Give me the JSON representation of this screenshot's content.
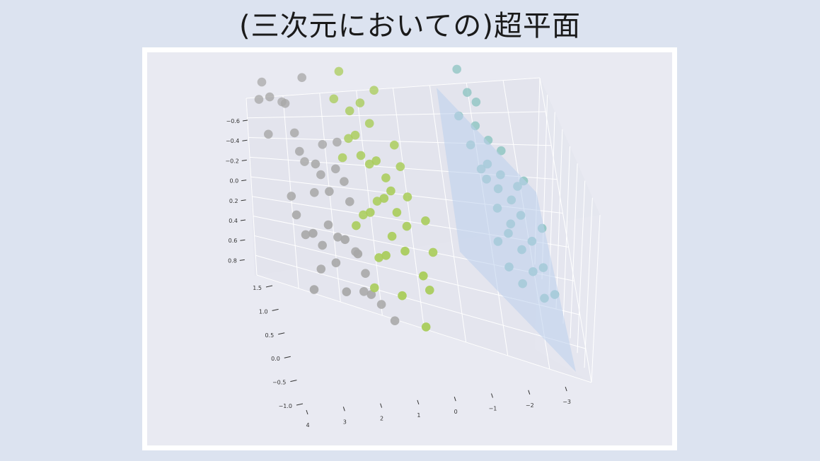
{
  "page": {
    "title": "(三次元においての)超平面"
  },
  "chart_data": {
    "type": "scatter",
    "projection": "3d",
    "title": "",
    "xlabel": "",
    "ylabel": "",
    "zlabel": "",
    "x_ticks": [
      "4",
      "3",
      "2",
      "1",
      "0",
      "−1",
      "−2",
      "−3"
    ],
    "y_ticks": [
      "1.5",
      "1.0",
      "0.5",
      "0.0",
      "−0.5",
      "−1.0"
    ],
    "z_ticks": [
      "−0.6",
      "−0.4",
      "−0.2",
      "0.0",
      "0.2",
      "0.4",
      "0.6",
      "0.8"
    ],
    "xlim": [
      4.5,
      -3.5
    ],
    "ylim": [
      -1.2,
      1.6
    ],
    "grid": true,
    "hyperplane": {
      "present": true,
      "color": "#bcd0ec"
    },
    "series": [
      {
        "color": "#a8a8a8",
        "points": [
          [
            4.1,
            1.4,
            -0.1
          ],
          [
            3.9,
            1.3,
            0.1
          ],
          [
            4.2,
            1.2,
            0.0
          ],
          [
            3.6,
            1.1,
            -0.1
          ],
          [
            3.5,
            1.2,
            0.1
          ],
          [
            3.0,
            1.5,
            0.0
          ],
          [
            4.0,
            0.8,
            0.2
          ],
          [
            3.3,
            0.9,
            0.3
          ],
          [
            3.2,
            0.7,
            0.4
          ],
          [
            3.1,
            0.5,
            0.3
          ],
          [
            2.8,
            0.6,
            0.5
          ],
          [
            2.7,
            0.4,
            0.4
          ],
          [
            2.9,
            0.2,
            0.5
          ],
          [
            2.5,
            0.3,
            0.6
          ],
          [
            2.3,
            0.5,
            0.4
          ],
          [
            2.1,
            0.4,
            0.5
          ],
          [
            2.0,
            0.2,
            0.6
          ],
          [
            3.5,
            0.1,
            0.5
          ],
          [
            3.4,
            -0.1,
            0.6
          ],
          [
            3.2,
            -0.3,
            0.7
          ],
          [
            3.0,
            -0.2,
            0.8
          ],
          [
            2.8,
            -0.4,
            0.7
          ],
          [
            2.6,
            -0.1,
            0.7
          ],
          [
            2.4,
            -0.3,
            0.6
          ],
          [
            2.2,
            -0.2,
            0.8
          ],
          [
            2.9,
            -0.8,
            0.6
          ],
          [
            2.5,
            -0.6,
            0.7
          ],
          [
            2.0,
            -0.5,
            0.5
          ],
          [
            1.8,
            -0.7,
            0.6
          ],
          [
            1.7,
            -0.9,
            0.7
          ],
          [
            1.9,
            -1.0,
            0.5
          ],
          [
            1.5,
            -1.1,
            0.5
          ],
          [
            2.3,
            -0.9,
            0.8
          ],
          [
            3.1,
            -1.0,
            0.8
          ],
          [
            1.2,
            -1.2,
            0.6
          ],
          [
            1.9,
            -0.3,
            0.9
          ],
          [
            2.2,
            0.8,
            0.3
          ],
          [
            2.6,
            0.7,
            0.2
          ]
        ]
      },
      {
        "color": "#a9cc5a",
        "points": [
          [
            2.0,
            1.5,
            -0.1
          ],
          [
            2.2,
            1.2,
            0.0
          ],
          [
            1.8,
            1.1,
            0.1
          ],
          [
            1.5,
            1.2,
            0.1
          ],
          [
            1.3,
            1.0,
            0.2
          ],
          [
            1.7,
            0.9,
            0.3
          ],
          [
            1.9,
            0.8,
            0.2
          ],
          [
            2.1,
            0.6,
            0.3
          ],
          [
            1.6,
            0.7,
            0.4
          ],
          [
            1.4,
            0.6,
            0.4
          ],
          [
            1.2,
            0.7,
            0.5
          ],
          [
            1.0,
            0.5,
            0.5
          ],
          [
            0.9,
            0.4,
            0.6
          ],
          [
            1.1,
            0.3,
            0.6
          ],
          [
            0.8,
            0.2,
            0.7
          ],
          [
            1.3,
            0.2,
            0.5
          ],
          [
            1.5,
            0.1,
            0.6
          ],
          [
            1.7,
            0.0,
            0.5
          ],
          [
            1.9,
            -0.1,
            0.6
          ],
          [
            1.0,
            -0.1,
            0.7
          ],
          [
            0.7,
            -0.2,
            0.8
          ],
          [
            1.2,
            -0.3,
            0.8
          ],
          [
            1.4,
            -0.4,
            0.7
          ],
          [
            0.6,
            0.0,
            0.6
          ],
          [
            0.5,
            0.3,
            0.5
          ],
          [
            0.3,
            -0.4,
            0.9
          ],
          [
            0.2,
            -0.6,
            0.8
          ],
          [
            0.9,
            -0.7,
            0.9
          ],
          [
            1.6,
            -0.8,
            0.7
          ],
          [
            0.4,
            -1.0,
            0.9
          ],
          [
            1.1,
            1.3,
            0.0
          ],
          [
            0.7,
            0.8,
            0.3
          ],
          [
            0.6,
            0.6,
            0.4
          ],
          [
            0.1,
            0.1,
            0.6
          ],
          [
            0.0,
            -0.2,
            0.7
          ]
        ]
      },
      {
        "color": "#8ec5c2",
        "points": [
          [
            -1.2,
            1.5,
            0.0
          ],
          [
            -1.4,
            1.3,
            0.1
          ],
          [
            -1.6,
            1.2,
            0.1
          ],
          [
            -1.1,
            1.1,
            0.2
          ],
          [
            -1.5,
            1.0,
            0.2
          ],
          [
            -1.8,
            0.9,
            0.3
          ],
          [
            -1.3,
            0.8,
            0.2
          ],
          [
            -1.7,
            0.7,
            0.4
          ],
          [
            -2.0,
            0.6,
            0.4
          ],
          [
            -1.9,
            0.5,
            0.5
          ],
          [
            -2.2,
            0.4,
            0.5
          ],
          [
            -1.6,
            0.5,
            0.3
          ],
          [
            -2.4,
            0.3,
            0.6
          ],
          [
            -2.1,
            0.2,
            0.6
          ],
          [
            -1.8,
            0.3,
            0.5
          ],
          [
            -2.6,
            0.1,
            0.7
          ],
          [
            -2.3,
            0.0,
            0.7
          ],
          [
            -2.0,
            0.1,
            0.6
          ],
          [
            -2.8,
            -0.1,
            0.8
          ],
          [
            -2.5,
            -0.2,
            0.7
          ],
          [
            -1.9,
            -0.2,
            0.7
          ],
          [
            -2.7,
            -0.4,
            0.8
          ],
          [
            -3.0,
            -0.3,
            0.9
          ],
          [
            -2.2,
            -0.3,
            0.8
          ],
          [
            -1.7,
            0.0,
            0.6
          ],
          [
            -2.9,
            0.2,
            0.6
          ],
          [
            -2.4,
            0.5,
            0.4
          ],
          [
            -1.5,
            0.6,
            0.3
          ],
          [
            -2.1,
            0.8,
            0.3
          ],
          [
            -2.6,
            0.6,
            0.5
          ]
        ]
      }
    ]
  }
}
